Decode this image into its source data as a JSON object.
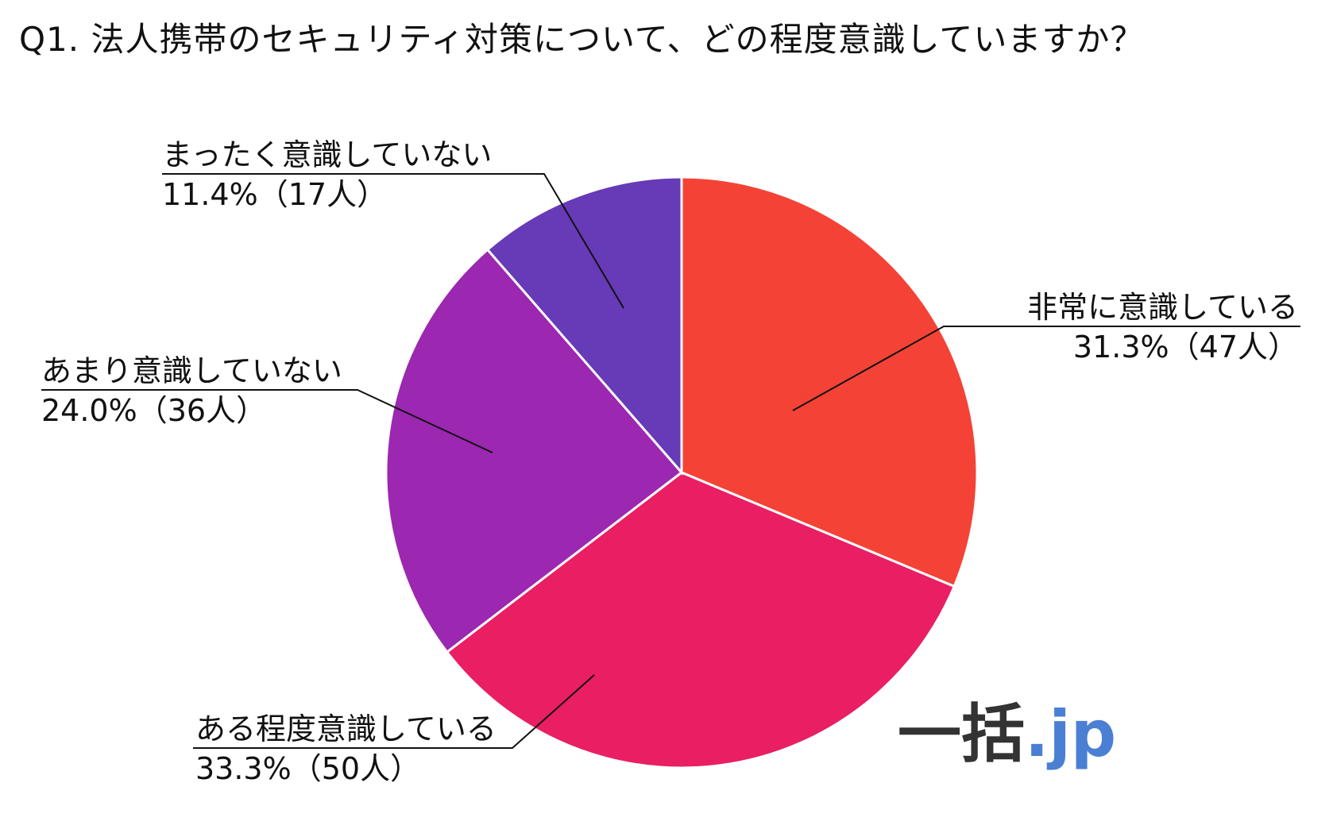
{
  "title": "Q1. 法人携帯のセキュリティ対策について、どの程度意識していますか？",
  "chart_data": {
    "type": "pie",
    "title": "Q1. 法人携帯のセキュリティ対策について、どの程度意識していますか？",
    "slices": [
      {
        "label": "非常に意識している",
        "value": 31.3,
        "count": 47,
        "display": "31.3%（47人）",
        "color": "#f44336"
      },
      {
        "label": "ある程度意識している",
        "value": 33.3,
        "count": 50,
        "display": "33.3%（50人）",
        "color": "#e91e63"
      },
      {
        "label": "あまり意識していない",
        "value": 24.0,
        "count": 36,
        "display": "24.0%（36人）",
        "color": "#9c27b0"
      },
      {
        "label": "まったく意識していない",
        "value": 11.4,
        "count": 17,
        "display": "11.4%（17人）",
        "color": "#673ab7"
      }
    ],
    "start_angle": "top",
    "direction": "clockwise"
  },
  "logo": {
    "main": "一括",
    "suffix": ".jp"
  }
}
